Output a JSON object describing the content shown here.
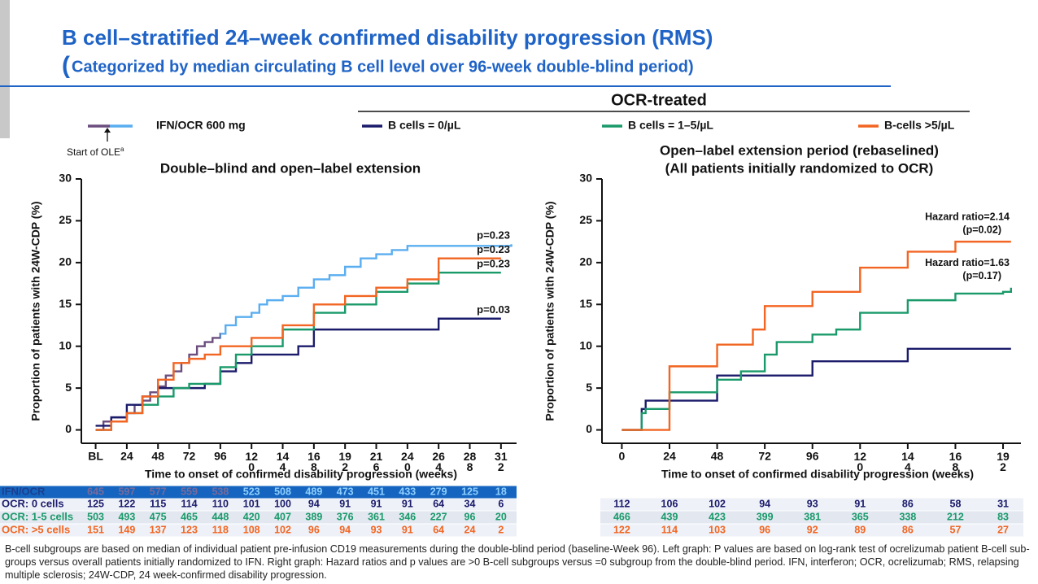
{
  "header": {
    "title": "B cell–stratified 24–week confirmed disability progression (RMS)",
    "subtitle_paren": "(",
    "subtitle": "Categorized by median circulating B cell level over 96-week double-blind period)"
  },
  "legend": {
    "header": "OCR-treated",
    "ole_marker": "Start of OLE",
    "ole_note": "a"
  },
  "chart_data": [
    {
      "type": "step",
      "title": "Double–blind and open–label extension",
      "ylabel": "Proportion of patients with 24W-CDP (%)",
      "xlabel": "Time to onset of confirmed disability progression (weeks)",
      "xlim": [
        -11,
        324
      ],
      "ylim": [
        -1.6,
        30
      ],
      "yticks": [
        0,
        5,
        10,
        15,
        20,
        25,
        30
      ],
      "xticks": [
        {
          "value": 0,
          "label": "BL"
        },
        24,
        48,
        72,
        96,
        120,
        144,
        168,
        192,
        216,
        240,
        264,
        288,
        312
      ],
      "series": [
        {
          "name": "IFN/OCR 600 mg",
          "color": "#6b4e7e",
          "color_after": "#5aaef0",
          "color_switch_x": 96,
          "x": [
            0,
            6,
            12,
            24,
            30,
            36,
            42,
            48,
            54,
            60,
            66,
            72,
            78,
            84,
            90,
            96,
            100,
            108,
            120,
            126,
            132,
            144,
            156,
            168,
            180,
            192,
            204,
            216,
            228,
            240,
            320
          ],
          "values": [
            0,
            1,
            1.5,
            2,
            3,
            3.5,
            4.5,
            5.2,
            6.5,
            7,
            8,
            9,
            10,
            10.5,
            11,
            11.5,
            12.5,
            13.5,
            14,
            15,
            15.5,
            16,
            17,
            18,
            18.5,
            19.5,
            20.5,
            21,
            21.5,
            22,
            22.2
          ],
          "end_label": "p=0.23"
        },
        {
          "name": "B cells = 0/µL",
          "color": "#1b1b6b",
          "x": [
            0,
            12,
            24,
            36,
            48,
            72,
            84,
            96,
            108,
            120,
            144,
            156,
            168,
            240,
            264,
            312
          ],
          "values": [
            0.5,
            1.5,
            3,
            4,
            5,
            5,
            5.5,
            7,
            8,
            9,
            9,
            10,
            12,
            12,
            13.3,
            13.3
          ],
          "end_label": "p=0.03"
        },
        {
          "name": "B cells = 1–5/µL",
          "color": "#1a9a6a",
          "x": [
            0,
            12,
            24,
            36,
            48,
            60,
            72,
            96,
            108,
            120,
            144,
            168,
            192,
            216,
            240,
            264,
            312
          ],
          "values": [
            0,
            1,
            2,
            3,
            4,
            5,
            5.5,
            7.5,
            9,
            10,
            12,
            14,
            15,
            16.5,
            17.5,
            18.8,
            18.8
          ],
          "end_label": "p=0.23"
        },
        {
          "name": "B-cells >5/µL",
          "color": "#f26522",
          "x": [
            0,
            12,
            24,
            36,
            48,
            60,
            72,
            84,
            96,
            120,
            144,
            168,
            192,
            216,
            240,
            264,
            312
          ],
          "values": [
            0,
            1,
            2,
            4,
            6,
            8,
            8.5,
            9,
            10,
            11,
            12.5,
            15,
            16,
            17,
            18,
            20.5,
            20.5
          ],
          "end_label": "p=0.23"
        }
      ],
      "risk_table": {
        "rows": [
          {
            "label": "IFN/OCR",
            "values": [
              645,
              597,
              577,
              559,
              538,
              523,
              508,
              489,
              473,
              451,
              433,
              279,
              125,
              18
            ]
          },
          {
            "label": "OCR: 0 cells",
            "values": [
              125,
              122,
              115,
              114,
              110,
              101,
              100,
              94,
              91,
              91,
              91,
              64,
              34,
              6
            ]
          },
          {
            "label": "OCR: 1-5 cells",
            "values": [
              503,
              493,
              475,
              465,
              448,
              420,
              407,
              389,
              376,
              361,
              346,
              227,
              96,
              20
            ]
          },
          {
            "label": "OCR: >5 cells",
            "values": [
              151,
              149,
              137,
              123,
              118,
              108,
              102,
              96,
              94,
              93,
              91,
              64,
              24,
              2
            ]
          }
        ]
      }
    },
    {
      "type": "step",
      "title": "Open–label extension period (rebaselined)",
      "subtitle": "(All patients initially randomized to OCR)",
      "ylabel": "Proportion of patients with 24W-CDP (%)",
      "xlabel": "Time to onset of confirmed disability progression (weeks)",
      "xlim": [
        -10,
        201
      ],
      "ylim": [
        -1.6,
        30
      ],
      "yticks": [
        0,
        5,
        10,
        15,
        20,
        25,
        30
      ],
      "xticks": [
        0,
        24,
        48,
        72,
        96,
        120,
        144,
        168,
        192
      ],
      "series": [
        {
          "color": "#1b1b6b",
          "x": [
            0,
            10,
            12,
            48,
            72,
            96,
            144,
            196
          ],
          "values": [
            0,
            2.5,
            3.5,
            6.5,
            6.5,
            8.2,
            9.7,
            9.7
          ]
        },
        {
          "color": "#1a9a6a",
          "x": [
            0,
            10,
            12,
            24,
            48,
            60,
            72,
            78,
            96,
            108,
            120,
            144,
            168,
            192,
            196
          ],
          "values": [
            0,
            2,
            2.5,
            4.5,
            6,
            7,
            9,
            10.5,
            11.4,
            12,
            14,
            15.5,
            16.3,
            16.5,
            17
          ],
          "end_label": [
            "Hazard ratio=1.63",
            "(p=0.17)"
          ]
        },
        {
          "color": "#f26522",
          "x": [
            0,
            24,
            48,
            66,
            72,
            96,
            120,
            144,
            168,
            196
          ],
          "values": [
            0,
            7.6,
            10.2,
            12,
            14.8,
            16.5,
            19.4,
            21.3,
            22.5,
            22.5
          ],
          "end_label": [
            "Hazard ratio=2.14",
            "(p=0.02)"
          ]
        }
      ],
      "risk_table": {
        "rows": [
          {
            "values": [
              112,
              106,
              102,
              94,
              93,
              91,
              86,
              58,
              31
            ]
          },
          {
            "values": [
              466,
              439,
              423,
              399,
              381,
              365,
              338,
              212,
              83
            ]
          },
          {
            "values": [
              122,
              114,
              103,
              96,
              92,
              89,
              86,
              57,
              27
            ]
          }
        ]
      }
    }
  ],
  "footnote": "B-cell subgroups are based on median of individual patient pre-infusion CD19 measurements during the double-blind period (baseline-Week 96). Left graph: P values are based on log-rank test of ocrelizumab patient B-cell sub-groups versus overall patients initially randomized to IFN. Right graph: Hazard ratios and p values are >0 B-cell subgroups versus =0 subgroup from the double-blind period. IFN, interferon; OCR, ocrelizumab; RMS, relapsing multiple sclerosis; 24W-CDP, 24 week-confirmed disability progression."
}
